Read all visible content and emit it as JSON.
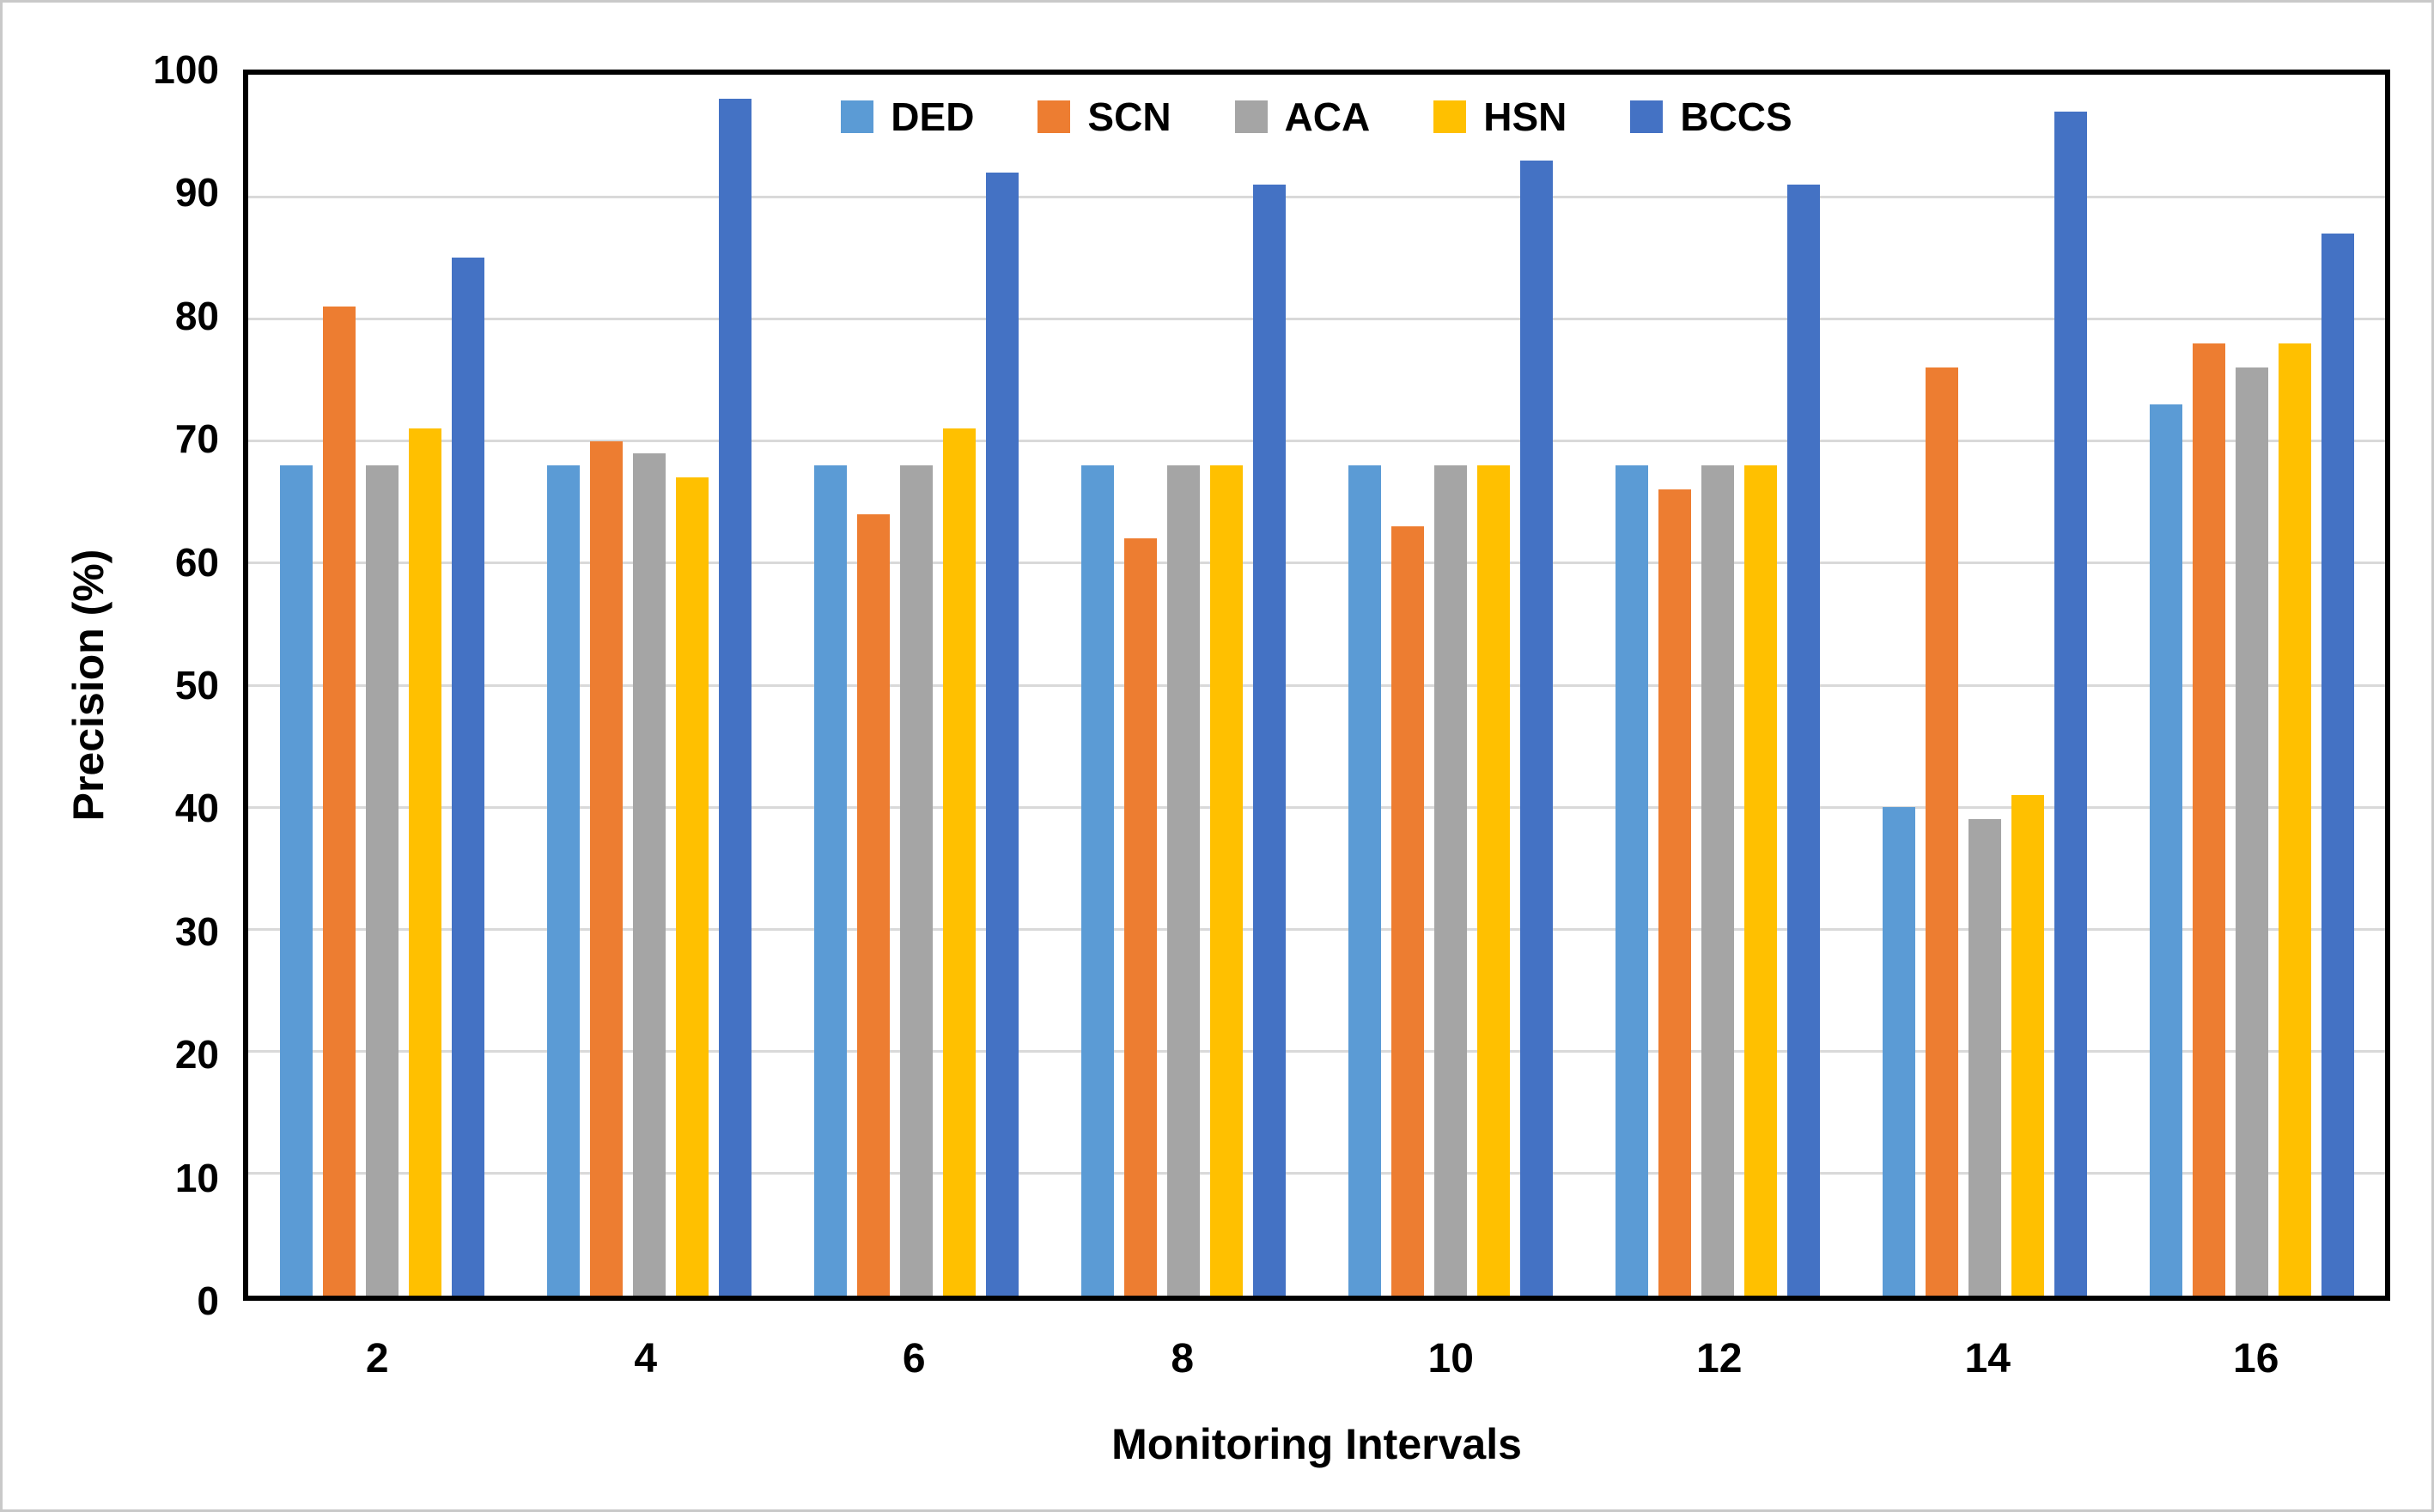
{
  "figure": {
    "background": "#ffffff",
    "frame_color": "#c9c9c9",
    "plot_border_color": "#000000"
  },
  "chart_data": {
    "type": "bar",
    "title": "",
    "xlabel": "Monitoring Intervals",
    "ylabel": "Precision (%)",
    "ylim": [
      0,
      100
    ],
    "ytick_step": 10,
    "grid": true,
    "gridline_color": "#d9d9d9",
    "legend_position": "top-center",
    "categories": [
      "2",
      "4",
      "6",
      "8",
      "10",
      "12",
      "14",
      "16"
    ],
    "series": [
      {
        "name": "DED",
        "color": "#5B9BD5",
        "values": [
          68,
          68,
          68,
          68,
          68,
          68,
          40,
          73
        ]
      },
      {
        "name": "SCN",
        "color": "#ED7D31",
        "values": [
          81,
          70,
          64,
          62,
          63,
          66,
          76,
          78
        ]
      },
      {
        "name": "ACA",
        "color": "#A5A5A5",
        "values": [
          68,
          69,
          68,
          68,
          68,
          68,
          39,
          76
        ]
      },
      {
        "name": "HSN",
        "color": "#FFC000",
        "values": [
          71,
          67,
          71,
          68,
          68,
          68,
          41,
          78
        ]
      },
      {
        "name": "BCCS",
        "color": "#4472C4",
        "values": [
          85,
          98,
          92,
          91,
          93,
          91,
          97,
          87
        ]
      }
    ]
  }
}
